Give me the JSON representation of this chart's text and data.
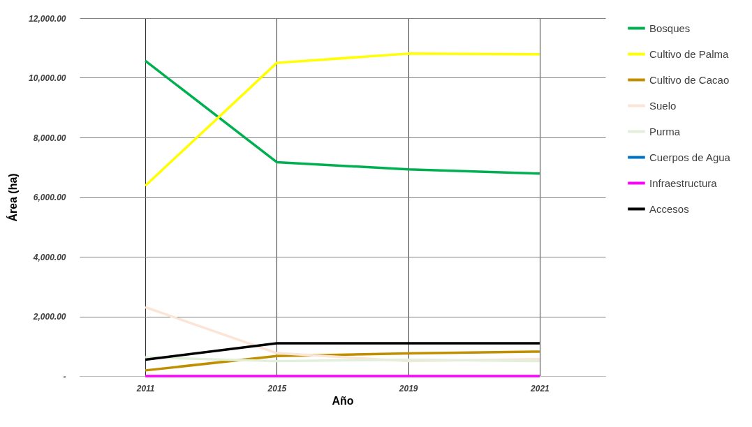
{
  "chart_data": {
    "type": "line",
    "xlabel": "Año",
    "ylabel": "Área (ha)",
    "categories": [
      "2011",
      "2015",
      "2019",
      "2021"
    ],
    "ylim": [
      0,
      12000
    ],
    "yticks": [
      {
        "value": 0,
        "label": "-"
      },
      {
        "value": 2000,
        "label": "2,000.00"
      },
      {
        "value": 4000,
        "label": "4,000.00"
      },
      {
        "value": 6000,
        "label": "6,000.00"
      },
      {
        "value": 8000,
        "label": "8,000.00"
      },
      {
        "value": 10000,
        "label": "10,000.00"
      },
      {
        "value": 12000,
        "label": "12,000.00"
      }
    ],
    "grid": true,
    "legend": "right",
    "marker": "none",
    "line_style": "solid",
    "series": [
      {
        "name": "Bosques",
        "color": "#00b050",
        "values": [
          10570,
          7170,
          6930,
          6790
        ]
      },
      {
        "name": "Cultivo de Palma",
        "color": "#ffff00",
        "values": [
          6380,
          10500,
          10810,
          10790
        ]
      },
      {
        "name": "Cultivo de Cacao",
        "color": "#bf8f00",
        "values": [
          190,
          670,
          760,
          820
        ]
      },
      {
        "name": "Suelo",
        "color": "#fbe5d6",
        "values": [
          2310,
          770,
          500,
          570
        ]
      },
      {
        "name": "Purma",
        "color": "#e2efda",
        "values": [
          630,
          500,
          550,
          500
        ]
      },
      {
        "name": "Cuerpos de Agua",
        "color": "#0070c0",
        "values": [
          null,
          null,
          null,
          null
        ]
      },
      {
        "name": "Infraestructura",
        "color": "#ff00ff",
        "values": [
          0,
          0,
          0,
          0
        ]
      },
      {
        "name": "Accesos",
        "color": "#000000",
        "values": [
          550,
          1100,
          1100,
          1100
        ]
      }
    ]
  }
}
